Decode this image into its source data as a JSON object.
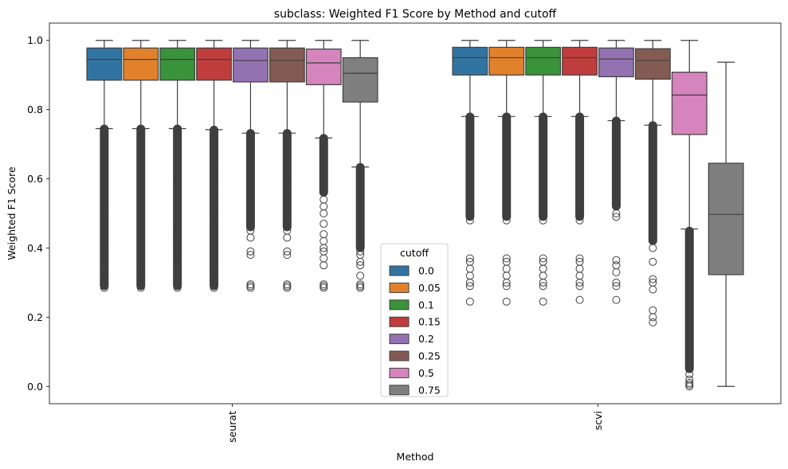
{
  "chart_data": {
    "type": "box",
    "title": "subclass: Weighted F1 Score by Method and cutoff",
    "xlabel": "Method",
    "ylabel": "Weighted F1 Score",
    "ylim": [
      -0.05,
      1.05
    ],
    "yticks": [
      0.0,
      0.2,
      0.4,
      0.6,
      0.8,
      1.0
    ],
    "ytick_labels": [
      "0.0",
      "0.2",
      "0.4",
      "0.6",
      "0.8",
      "1.0"
    ],
    "categories": [
      "seurat",
      "scvi"
    ],
    "legend": {
      "title": "cutoff",
      "placement": "lower-center"
    },
    "series": [
      {
        "name": "0.0",
        "color": "#3274a1",
        "boxes": [
          {
            "q1": 0.885,
            "median": 0.945,
            "q3": 0.978,
            "whislo": 0.745,
            "whishi": 1.0,
            "fliers_dense": [
              0.29,
              0.745
            ],
            "fliers": [
              0.285,
              0.29,
              0.295,
              0.32,
              0.36,
              0.37,
              0.38,
              0.39,
              0.41,
              0.43,
              0.45,
              0.47,
              0.5,
              0.52,
              0.55,
              0.58,
              0.6,
              0.62,
              0.65,
              0.68,
              0.7,
              0.72,
              0.74
            ]
          },
          {
            "q1": 0.9,
            "median": 0.95,
            "q3": 0.98,
            "whislo": 0.78,
            "whishi": 1.0,
            "fliers_dense": [
              0.49,
              0.78
            ],
            "fliers": [
              0.245,
              0.29,
              0.3,
              0.32,
              0.34,
              0.36,
              0.37,
              0.48,
              0.5
            ]
          }
        ]
      },
      {
        "name": "0.05",
        "color": "#e1812c",
        "boxes": [
          {
            "q1": 0.885,
            "median": 0.945,
            "q3": 0.978,
            "whislo": 0.745,
            "whishi": 1.0,
            "fliers_dense": [
              0.29,
              0.745
            ],
            "fliers": [
              0.285,
              0.29,
              0.295,
              0.32,
              0.36,
              0.37,
              0.38,
              0.39,
              0.41,
              0.43,
              0.45,
              0.47,
              0.5,
              0.52,
              0.55,
              0.58,
              0.6,
              0.62,
              0.65,
              0.68,
              0.7,
              0.72,
              0.74
            ]
          },
          {
            "q1": 0.9,
            "median": 0.95,
            "q3": 0.98,
            "whislo": 0.78,
            "whishi": 1.0,
            "fliers_dense": [
              0.49,
              0.78
            ],
            "fliers": [
              0.245,
              0.29,
              0.3,
              0.32,
              0.34,
              0.36,
              0.37,
              0.48,
              0.5
            ]
          }
        ]
      },
      {
        "name": "0.1",
        "color": "#3a923a",
        "boxes": [
          {
            "q1": 0.885,
            "median": 0.945,
            "q3": 0.978,
            "whislo": 0.745,
            "whishi": 1.0,
            "fliers_dense": [
              0.29,
              0.745
            ],
            "fliers": [
              0.285,
              0.29,
              0.295,
              0.32,
              0.36,
              0.37,
              0.38,
              0.39,
              0.41,
              0.43,
              0.45,
              0.47,
              0.5,
              0.52,
              0.55,
              0.58,
              0.6,
              0.62,
              0.65,
              0.68,
              0.7,
              0.72,
              0.74
            ]
          },
          {
            "q1": 0.9,
            "median": 0.95,
            "q3": 0.98,
            "whislo": 0.78,
            "whishi": 1.0,
            "fliers_dense": [
              0.49,
              0.78
            ],
            "fliers": [
              0.245,
              0.29,
              0.3,
              0.32,
              0.34,
              0.36,
              0.37,
              0.48,
              0.5
            ]
          }
        ]
      },
      {
        "name": "0.15",
        "color": "#c03d3e",
        "boxes": [
          {
            "q1": 0.885,
            "median": 0.945,
            "q3": 0.978,
            "whislo": 0.742,
            "whishi": 1.0,
            "fliers_dense": [
              0.29,
              0.742
            ],
            "fliers": [
              0.285,
              0.29,
              0.295,
              0.36,
              0.37,
              0.38,
              0.39,
              0.41,
              0.43,
              0.45,
              0.47,
              0.5,
              0.52,
              0.55,
              0.58,
              0.6,
              0.62,
              0.65,
              0.68,
              0.7,
              0.72,
              0.74
            ]
          },
          {
            "q1": 0.9,
            "median": 0.95,
            "q3": 0.98,
            "whislo": 0.78,
            "whishi": 1.0,
            "fliers_dense": [
              0.49,
              0.78
            ],
            "fliers": [
              0.25,
              0.29,
              0.3,
              0.32,
              0.34,
              0.36,
              0.37,
              0.48,
              0.5
            ]
          }
        ]
      },
      {
        "name": "0.2",
        "color": "#9372b2",
        "boxes": [
          {
            "q1": 0.88,
            "median": 0.942,
            "q3": 0.978,
            "whislo": 0.732,
            "whishi": 1.0,
            "fliers_dense": [
              0.46,
              0.732
            ],
            "fliers": [
              0.285,
              0.29,
              0.295,
              0.38,
              0.39,
              0.43,
              0.45,
              0.47,
              0.5,
              0.52,
              0.55,
              0.58,
              0.6
            ]
          },
          {
            "q1": 0.895,
            "median": 0.946,
            "q3": 0.978,
            "whislo": 0.768,
            "whishi": 1.0,
            "fliers_dense": [
              0.52,
              0.768
            ],
            "fliers": [
              0.25,
              0.29,
              0.3,
              0.33,
              0.35,
              0.365,
              0.49,
              0.5,
              0.52
            ]
          }
        ]
      },
      {
        "name": "0.25",
        "color": "#845b53",
        "boxes": [
          {
            "q1": 0.88,
            "median": 0.942,
            "q3": 0.978,
            "whislo": 0.732,
            "whishi": 1.0,
            "fliers_dense": [
              0.46,
              0.732
            ],
            "fliers": [
              0.285,
              0.29,
              0.295,
              0.38,
              0.39,
              0.43,
              0.45,
              0.47,
              0.5,
              0.52,
              0.55,
              0.58,
              0.6
            ]
          },
          {
            "q1": 0.888,
            "median": 0.942,
            "q3": 0.976,
            "whislo": 0.755,
            "whishi": 1.0,
            "fliers_dense": [
              0.42,
              0.755
            ],
            "fliers": [
              0.185,
              0.2,
              0.22,
              0.28,
              0.3,
              0.31,
              0.36,
              0.4
            ]
          }
        ]
      },
      {
        "name": "0.5",
        "color": "#d684bd",
        "boxes": [
          {
            "q1": 0.872,
            "median": 0.935,
            "q3": 0.975,
            "whislo": 0.718,
            "whishi": 1.0,
            "fliers_dense": [
              0.56,
              0.718
            ],
            "fliers": [
              0.285,
              0.29,
              0.295,
              0.35,
              0.37,
              0.39,
              0.4,
              0.42,
              0.44,
              0.47,
              0.5,
              0.52,
              0.54
            ]
          },
          {
            "q1": 0.728,
            "median": 0.842,
            "q3": 0.908,
            "whislo": 0.455,
            "whishi": 1.0,
            "fliers_dense": [
              0.05,
              0.45
            ],
            "fliers": [
              0.0,
              0.005,
              0.01,
              0.02,
              0.035,
              0.05,
              0.07,
              0.09,
              0.1,
              0.12
            ]
          }
        ]
      },
      {
        "name": "0.75",
        "color": "#7f7f7f",
        "boxes": [
          {
            "q1": 0.822,
            "median": 0.905,
            "q3": 0.95,
            "whislo": 0.634,
            "whishi": 1.0,
            "fliers_dense": [
              0.4,
              0.634
            ],
            "fliers": [
              0.285,
              0.29,
              0.295,
              0.32,
              0.35,
              0.36,
              0.38,
              0.39
            ]
          },
          {
            "q1": 0.323,
            "median": 0.497,
            "q3": 0.645,
            "whislo": 0.0,
            "whishi": 0.937,
            "fliers_dense": [],
            "fliers": []
          }
        ]
      }
    ]
  }
}
